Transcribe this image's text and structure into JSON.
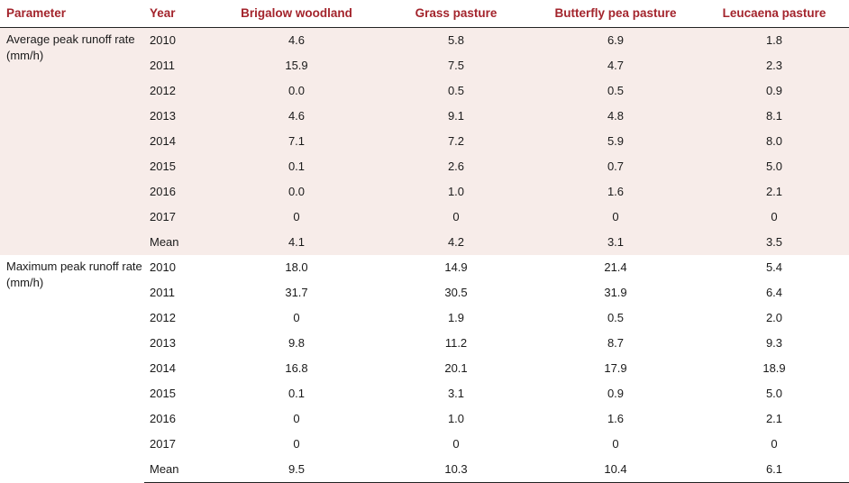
{
  "table": {
    "headers": [
      "Parameter",
      "Year",
      "Brigalow woodland",
      "Grass pasture",
      "Butterfly pea pasture",
      "Leucaena pasture"
    ],
    "groups": [
      {
        "parameter": "Average peak runoff rate (mm/h)",
        "rows": [
          {
            "year": "2010",
            "values": [
              "4.6",
              "5.8",
              "6.9",
              "1.8"
            ]
          },
          {
            "year": "2011",
            "values": [
              "15.9",
              "7.5",
              "4.7",
              "2.3"
            ]
          },
          {
            "year": "2012",
            "values": [
              "0.0",
              "0.5",
              "0.5",
              "0.9"
            ]
          },
          {
            "year": "2013",
            "values": [
              "4.6",
              "9.1",
              "4.8",
              "8.1"
            ]
          },
          {
            "year": "2014",
            "values": [
              "7.1",
              "7.2",
              "5.9",
              "8.0"
            ]
          },
          {
            "year": "2015",
            "values": [
              "0.1",
              "2.6",
              "0.7",
              "5.0"
            ]
          },
          {
            "year": "2016",
            "values": [
              "0.0",
              "1.0",
              "1.6",
              "2.1"
            ]
          },
          {
            "year": "2017",
            "values": [
              "0",
              "0",
              "0",
              "0"
            ]
          },
          {
            "year": "Mean",
            "values": [
              "4.1",
              "4.2",
              "3.1",
              "3.5"
            ]
          }
        ]
      },
      {
        "parameter": "Maximum peak runoff rate (mm/h)",
        "rows": [
          {
            "year": "2010",
            "values": [
              "18.0",
              "14.9",
              "21.4",
              "5.4"
            ]
          },
          {
            "year": "2011",
            "values": [
              "31.7",
              "30.5",
              "31.9",
              "6.4"
            ]
          },
          {
            "year": "2012",
            "values": [
              "0",
              "1.9",
              "0.5",
              "2.0"
            ]
          },
          {
            "year": "2013",
            "values": [
              "9.8",
              "11.2",
              "8.7",
              "9.3"
            ]
          },
          {
            "year": "2014",
            "values": [
              "16.8",
              "20.1",
              "17.9",
              "18.9"
            ]
          },
          {
            "year": "2015",
            "values": [
              "0.1",
              "3.1",
              "0.9",
              "5.0"
            ]
          },
          {
            "year": "2016",
            "values": [
              "0",
              "1.0",
              "1.6",
              "2.1"
            ]
          },
          {
            "year": "2017",
            "values": [
              "0",
              "0",
              "0",
              "0"
            ]
          },
          {
            "year": "Mean",
            "values": [
              "9.5",
              "10.3",
              "10.4",
              "6.1"
            ]
          }
        ]
      }
    ]
  }
}
